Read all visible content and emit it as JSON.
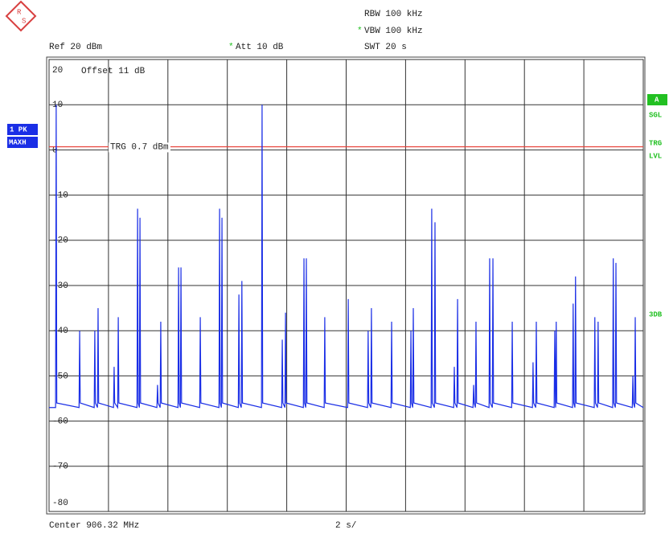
{
  "chart_data": {
    "type": "line",
    "logo": [
      "R",
      "S"
    ],
    "rbw": "RBW 100 kHz",
    "vbw_mark": "*",
    "vbw": "VBW 100 kHz",
    "ref": "Ref 20 dBm",
    "att_mark": "*",
    "att": "Att 10 dB",
    "swt": "SWT 20 s",
    "offset": "Offset 11 dB",
    "trace_label": "1 PK",
    "trace_mode": "MAXH",
    "side_labels": [
      "A",
      "SGL",
      "TRG",
      "LVL",
      "3DB"
    ],
    "center": "Center 906.32 MHz",
    "span_per_div": "2 s/",
    "trigger_level": 0.7,
    "trigger_label": "TRG 0.7 dBm",
    "trigger_color": "#e8423a",
    "xlim": [
      0,
      20
    ],
    "xticks": [
      0,
      2,
      4,
      6,
      8,
      10,
      12,
      14,
      16,
      18,
      20
    ],
    "ylim": [
      -80,
      20
    ],
    "yticks": [
      -80,
      -70,
      -60,
      -50,
      -40,
      -30,
      -20,
      -10,
      0,
      10,
      20
    ],
    "grid": true,
    "series": [
      {
        "color": "#1a2ee6",
        "x": [
          0,
          0.22,
          0.24,
          0.26,
          1.01,
          1.03,
          1.05,
          1.52,
          1.54,
          1.56,
          1.63,
          1.65,
          1.67,
          2.17,
          2.19,
          2.21,
          2.31,
          2.33,
          2.35,
          2.96,
          2.98,
          3.0,
          3.04,
          3.06,
          3.08,
          3.63,
          3.65,
          3.67,
          3.74,
          3.76,
          3.78,
          4.34,
          4.36,
          4.38,
          4.42,
          4.44,
          4.46,
          5.07,
          5.09,
          5.11,
          5.72,
          5.74,
          5.76,
          5.8,
          5.82,
          5.84,
          6.37,
          6.39,
          6.41,
          6.47,
          6.49,
          6.51,
          7.15,
          7.17,
          7.19,
          7.83,
          7.85,
          7.87,
          7.94,
          7.96,
          7.98,
          8.56,
          8.58,
          8.6,
          8.64,
          8.66,
          8.68,
          9.26,
          9.28,
          9.3,
          10.05,
          10.07,
          10.09,
          10.72,
          10.74,
          10.76,
          10.83,
          10.85,
          10.87,
          11.51,
          11.53,
          11.55,
          12.16,
          12.18,
          12.2,
          12.24,
          12.26,
          12.28,
          12.86,
          12.88,
          12.9,
          12.97,
          12.99,
          13.01,
          13.62,
          13.64,
          13.66,
          13.73,
          13.75,
          13.77,
          14.27,
          14.29,
          14.31,
          14.35,
          14.37,
          14.39,
          14.81,
          14.83,
          14.85,
          14.92,
          14.94,
          14.96,
          15.57,
          15.59,
          15.61,
          16.27,
          16.29,
          16.31,
          16.38,
          16.4,
          16.42,
          17.0,
          17.02,
          17.04,
          17.05,
          17.07,
          17.09,
          17.62,
          17.64,
          17.66,
          17.7,
          17.72,
          17.74,
          18.35,
          18.37,
          18.39,
          18.46,
          18.48,
          18.5,
          18.97,
          18.99,
          19.01,
          19.06,
          19.08,
          19.1,
          19.63,
          19.65,
          19.67,
          19.71,
          19.73,
          19.75,
          20
        ],
        "values": [
          -57,
          -57,
          10,
          -56,
          -57,
          -40,
          -56,
          -57,
          -40,
          -56,
          -57,
          -35,
          -56,
          -57,
          -48,
          -56,
          -57,
          -37,
          -56,
          -57,
          -13,
          -56,
          -57,
          -15,
          -56,
          -57,
          -52,
          -56,
          -57,
          -38,
          -56,
          -57,
          -26,
          -56,
          -57,
          -26,
          -56,
          -57,
          -37,
          -56,
          -57,
          -13,
          -56,
          -57,
          -15,
          -56,
          -57,
          -32,
          -56,
          -57,
          -29,
          -56,
          -57,
          10,
          -56,
          -57,
          -42,
          -56,
          -57,
          -36,
          -56,
          -57,
          -24,
          -56,
          -57,
          -24,
          -56,
          -57,
          -37,
          -56,
          -57,
          -33,
          -56,
          -57,
          -40,
          -56,
          -57,
          -35,
          -56,
          -57,
          -38,
          -56,
          -57,
          -40,
          -56,
          -57,
          -35,
          -56,
          -57,
          -13,
          -56,
          -57,
          -16,
          -56,
          -57,
          -48,
          -56,
          -57,
          -33,
          -56,
          -57,
          -52,
          -56,
          -57,
          -38,
          -56,
          -57,
          -24,
          -56,
          -57,
          -24,
          -56,
          -57,
          -38,
          -56,
          -57,
          -47,
          -56,
          -57,
          -38,
          -56,
          -57,
          -40,
          -56,
          -57,
          -38,
          -56,
          -57,
          -34,
          -56,
          -57,
          -28,
          -56,
          -57,
          -37,
          -56,
          -57,
          -38,
          -56,
          -57,
          -24,
          -56,
          -57,
          -25,
          -56,
          -57,
          -50,
          -56,
          -57,
          -37,
          -56,
          -57
        ]
      }
    ]
  }
}
